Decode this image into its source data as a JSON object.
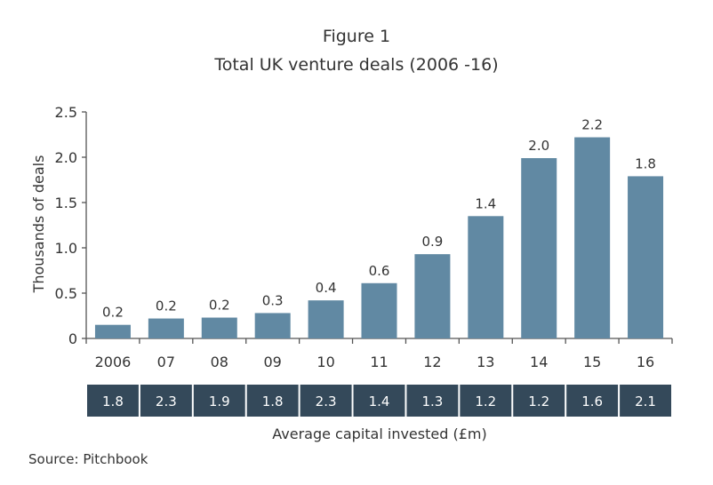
{
  "figure_label": "Figure 1",
  "title": "Total UK venture deals  (2006 -16)",
  "source": "Source: Pitchbook",
  "colors": {
    "bar": "#6189a3",
    "strip": "#34495a",
    "axis": "#555555",
    "text": "#333333"
  },
  "chart_data": {
    "type": "bar",
    "ylabel": "Thousands of deals",
    "ylim": [
      0,
      2.5
    ],
    "yticks": [
      "0",
      "0.5",
      "1.0",
      "1.5",
      "2.0",
      "2.5"
    ],
    "categories": [
      "2006",
      "07",
      "08",
      "09",
      "10",
      "11",
      "12",
      "13",
      "14",
      "15",
      "16"
    ],
    "values": [
      0.15,
      0.22,
      0.23,
      0.28,
      0.42,
      0.61,
      0.93,
      1.35,
      1.99,
      2.22,
      1.79
    ],
    "value_labels": [
      "0.2",
      "0.2",
      "0.2",
      "0.3",
      "0.4",
      "0.6",
      "0.9",
      "1.4",
      "2.0",
      "2.2",
      "1.8"
    ],
    "grid": false,
    "secondary_row": {
      "label": "Average capital invested (£m)",
      "values": [
        "1.8",
        "2.3",
        "1.9",
        "1.8",
        "2.3",
        "1.4",
        "1.3",
        "1.2",
        "1.2",
        "1.6",
        "2.1"
      ]
    }
  }
}
